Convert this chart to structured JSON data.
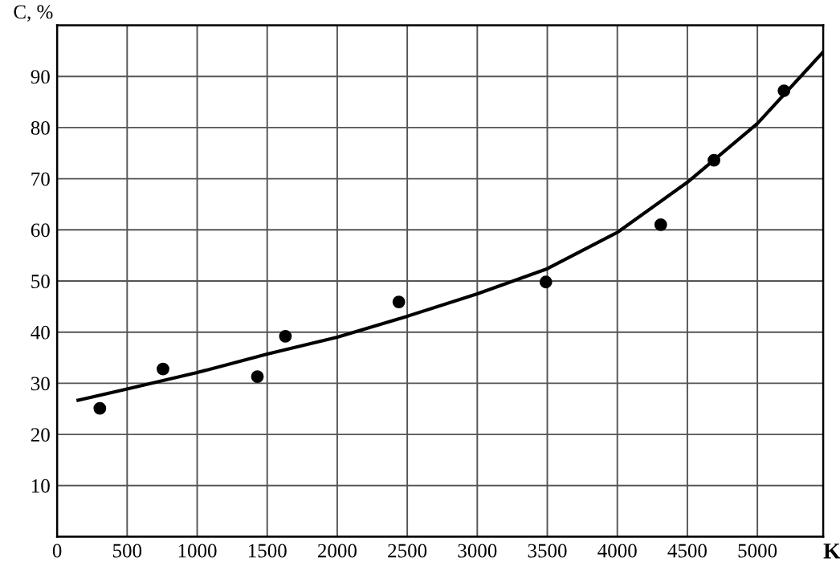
{
  "chart_data": {
    "type": "scatter",
    "xlabel": "K",
    "ylabel": "C, %",
    "xlim": [
      0,
      5470
    ],
    "ylim": [
      0,
      100
    ],
    "xticks": [
      0,
      500,
      1000,
      1500,
      2000,
      2500,
      3000,
      3500,
      4000,
      4500,
      5000
    ],
    "yticks": [
      {
        "value": 0,
        "label": null
      },
      10,
      20,
      30,
      40,
      50,
      60,
      70,
      80,
      90
    ],
    "grid": true,
    "marker": "circle",
    "series": [
      {
        "color": "#000000",
        "x": [
          305,
          756,
          1430,
          1630,
          2440,
          3490,
          4310,
          4690,
          5190
        ],
        "values": [
          25.1,
          32.8,
          31.3,
          39.2,
          45.9,
          49.8,
          61,
          73.6,
          87.2
        ]
      },
      {
        "type": "line",
        "color": "#000000",
        "marker": "none",
        "line_style": "solid",
        "x": [
          150,
          500,
          1000,
          1500,
          2000,
          2500,
          3000,
          3500,
          4000,
          4500,
          5000,
          5470
        ],
        "values": [
          26.7,
          28.9,
          32.1,
          35.7,
          39.0,
          43.1,
          47.5,
          52.4,
          59.5,
          69.3,
          80.8,
          94.8
        ]
      }
    ]
  }
}
